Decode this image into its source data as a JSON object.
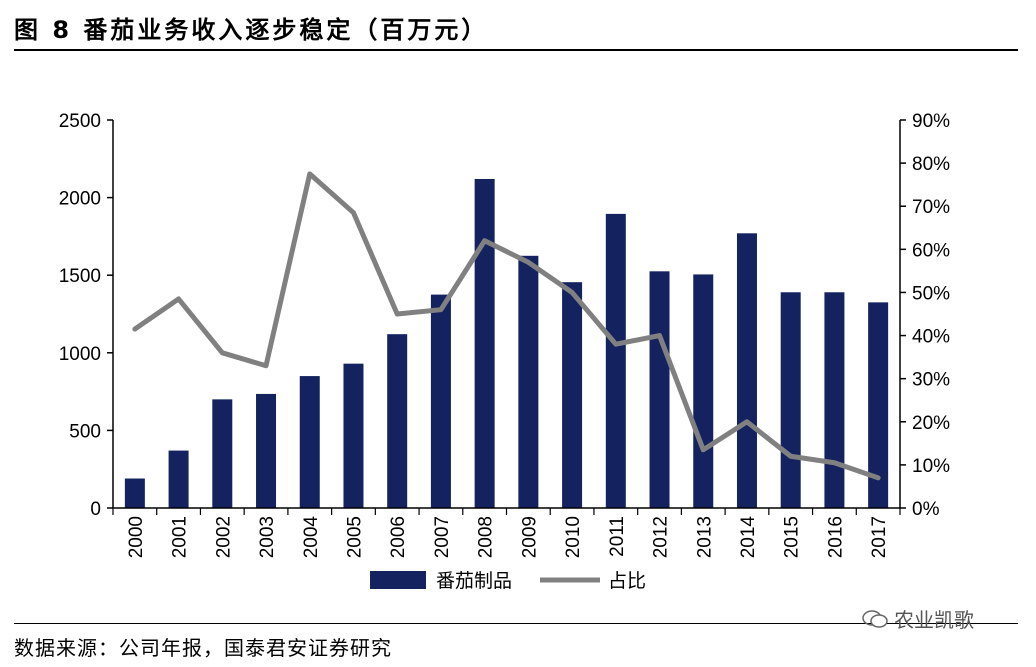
{
  "figure_title": "图 8 番茄业务收入逐步稳定（百万元）",
  "source_note": "数据来源：公司年报，国泰君安证券研究",
  "watermark": "农业凯歌",
  "colors": {
    "bar": "#14235f",
    "line": "#808080",
    "axis": "#000000"
  },
  "chart_data": {
    "type": "bar",
    "title": "",
    "xlabel": "",
    "ylabel": "",
    "categories": [
      "2000",
      "2001",
      "2002",
      "2003",
      "2004",
      "2005",
      "2006",
      "2007",
      "2008",
      "2009",
      "2010",
      "2011",
      "2012",
      "2013",
      "2014",
      "2015",
      "2016",
      "2017"
    ],
    "ylim": [
      0,
      2500
    ],
    "yticks": [
      "0",
      "500",
      "1000",
      "1500",
      "2000",
      "2500"
    ],
    "y2lim": [
      0,
      0.9
    ],
    "y2ticks": [
      "0%",
      "10%",
      "20%",
      "30%",
      "40%",
      "50%",
      "60%",
      "70%",
      "80%",
      "90%"
    ],
    "grid": false,
    "legend_position": "bottom",
    "series": [
      {
        "name": "番茄制品",
        "type": "bar",
        "axis": "left",
        "values": [
          190,
          370,
          700,
          735,
          850,
          930,
          1120,
          1375,
          2120,
          1625,
          1455,
          1895,
          1525,
          1505,
          1770,
          1390,
          1390,
          1325
        ]
      },
      {
        "name": "占比",
        "type": "line",
        "axis": "right",
        "values": [
          0.415,
          0.485,
          0.36,
          0.33,
          0.775,
          0.685,
          0.45,
          0.46,
          0.62,
          0.57,
          0.5,
          0.38,
          0.4,
          0.135,
          0.2,
          0.12,
          0.105,
          0.07
        ]
      }
    ]
  }
}
